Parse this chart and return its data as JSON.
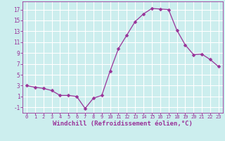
{
  "x": [
    0,
    1,
    2,
    3,
    4,
    5,
    6,
    7,
    8,
    9,
    10,
    11,
    12,
    13,
    14,
    15,
    16,
    17,
    18,
    19,
    20,
    21,
    22,
    23
  ],
  "y": [
    3,
    2.7,
    2.5,
    2.1,
    1.2,
    1.2,
    1.0,
    -1.2,
    0.7,
    1.2,
    5.7,
    9.8,
    12.3,
    14.8,
    16.2,
    17.2,
    17.1,
    17.0,
    13.2,
    10.5,
    8.7,
    8.8,
    7.8,
    6.5
  ],
  "xlabel": "Windchill (Refroidissement éolien,°C)",
  "line_color": "#993399",
  "marker": "D",
  "marker_size": 2.5,
  "bg_color": "#cceeee",
  "grid_color": "#ffffff",
  "xlim": [
    -0.5,
    23.5
  ],
  "ylim": [
    -2,
    18.5
  ],
  "yticks": [
    -1,
    1,
    3,
    5,
    7,
    9,
    11,
    13,
    15,
    17
  ],
  "xticks": [
    0,
    1,
    2,
    3,
    4,
    5,
    6,
    7,
    8,
    9,
    10,
    11,
    12,
    13,
    14,
    15,
    16,
    17,
    18,
    19,
    20,
    21,
    22,
    23
  ],
  "tick_color": "#993399",
  "label_color": "#993399",
  "xlabel_fontsize": 6.5,
  "tick_fontsize": 6.0,
  "linewidth": 0.9
}
